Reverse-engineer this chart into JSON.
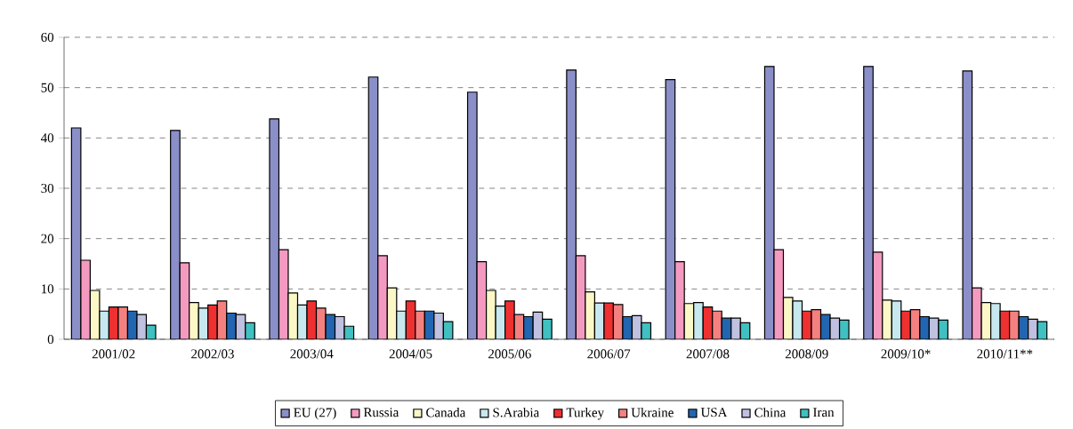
{
  "chart_data": {
    "type": "bar",
    "categories": [
      "2001/02",
      "2002/03",
      "2003/04",
      "2004/05",
      "2005/06",
      "2006/07",
      "2007/08",
      "2008/09",
      "2009/10*",
      "2010/11**"
    ],
    "series": [
      {
        "name": "EU (27)",
        "color": "#8b8fc8",
        "values": [
          42,
          41.5,
          43.8,
          52.1,
          49.1,
          53.5,
          51.6,
          54.2,
          54.2,
          53.3
        ]
      },
      {
        "name": "Russia",
        "color": "#f49ac1",
        "values": [
          15.7,
          15.2,
          17.8,
          16.6,
          15.4,
          16.6,
          15.4,
          17.8,
          17.3,
          10.2
        ]
      },
      {
        "name": "Canada",
        "color": "#fbf7c6",
        "values": [
          9.7,
          7.3,
          9.2,
          10.2,
          9.7,
          9.4,
          7.1,
          8.3,
          7.8,
          7.3
        ]
      },
      {
        "name": "S.Arabia",
        "color": "#c6e8ee",
        "values": [
          5.6,
          6.2,
          6.8,
          5.6,
          6.6,
          7.2,
          7.3,
          7.6,
          7.6,
          7.1
        ]
      },
      {
        "name": "Turkey",
        "color": "#ee3030",
        "values": [
          6.4,
          6.8,
          7.6,
          7.6,
          7.6,
          7.2,
          6.4,
          5.6,
          5.6,
          5.6
        ]
      },
      {
        "name": "Ukraine",
        "color": "#f58080",
        "values": [
          6.4,
          7.6,
          6.2,
          5.6,
          4.9,
          6.9,
          5.6,
          5.9,
          5.9,
          5.6
        ]
      },
      {
        "name": "USA",
        "color": "#2265b0",
        "values": [
          5.6,
          5.2,
          4.9,
          5.6,
          4.5,
          4.5,
          4.2,
          4.9,
          4.5,
          4.5
        ]
      },
      {
        "name": "China",
        "color": "#c0c0e0",
        "values": [
          4.9,
          4.9,
          4.5,
          5.2,
          5.4,
          4.7,
          4.2,
          4.2,
          4.2,
          4.0
        ]
      },
      {
        "name": "Iran",
        "color": "#40c0c0",
        "values": [
          2.8,
          3.3,
          2.6,
          3.5,
          4.0,
          3.3,
          3.3,
          3.8,
          3.8,
          3.5
        ]
      }
    ],
    "ylim": [
      0,
      60
    ],
    "yticks": [
      0,
      10,
      20,
      30,
      40,
      50,
      60
    ],
    "grid": "y",
    "legend": "bottom"
  }
}
